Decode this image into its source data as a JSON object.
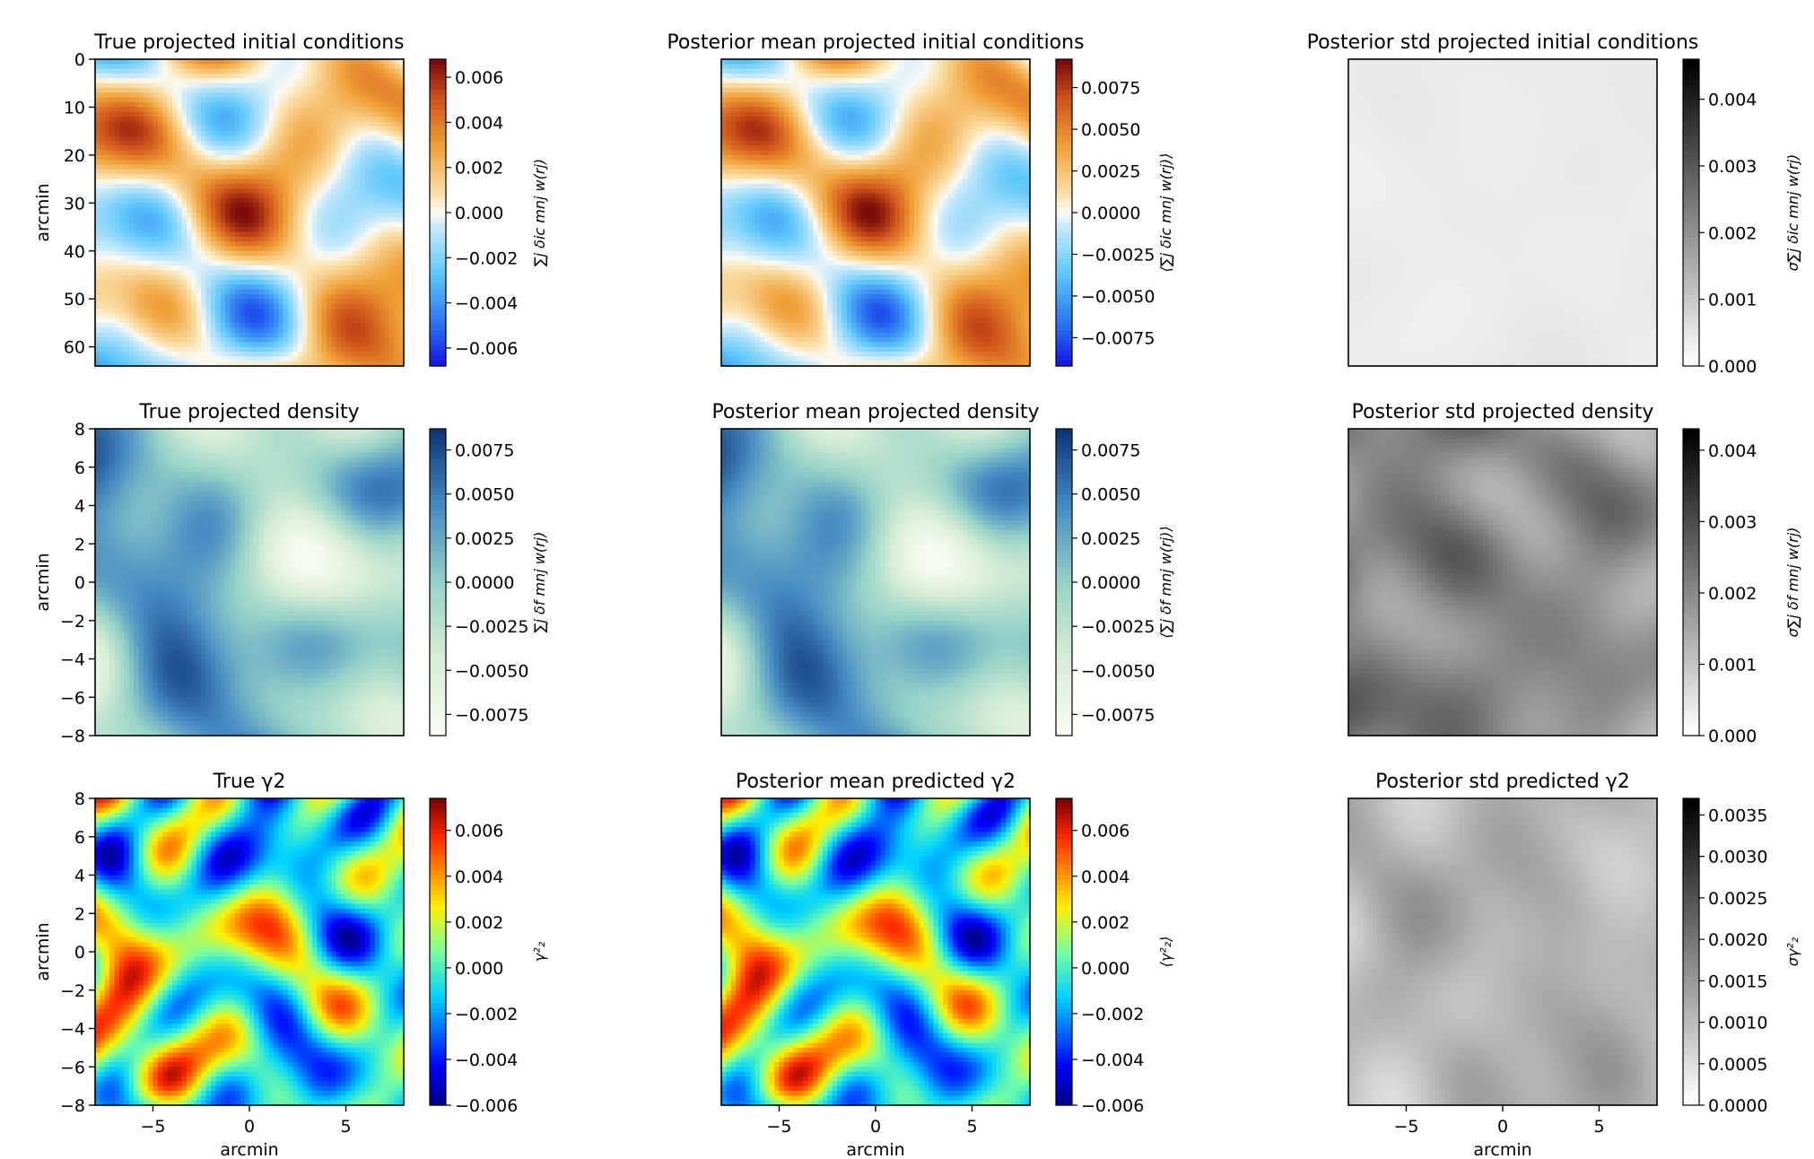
{
  "figure": {
    "title": "",
    "rows": 3,
    "cols": 3
  },
  "chart_data": [
    {
      "type": "heatmap",
      "panel": "r0c0",
      "title": "True projected initial conditions",
      "ylabel": "arcmin",
      "xlabel": "",
      "ylim": [
        64,
        0
      ],
      "xlim": null,
      "yticks": [
        0,
        10,
        20,
        30,
        40,
        50,
        60
      ],
      "xticks": [],
      "colormap": "orange-blue (RdYlBu-like, diverging)",
      "vmin": -0.0068,
      "vmax": 0.0068,
      "colorbar_ticks": [
        0.006,
        0.004,
        0.002,
        0.0,
        -0.002,
        -0.004,
        -0.006
      ],
      "colorbar_label": "∑j δic mnj w(rj)",
      "grid": "off",
      "seed": 11
    },
    {
      "type": "heatmap",
      "panel": "r0c1",
      "title": "Posterior mean projected initial conditions",
      "ylabel": "",
      "xlabel": "",
      "ylim": null,
      "xlim": null,
      "yticks": [],
      "xticks": [],
      "colormap": "orange-blue (RdYlBu-like, diverging)",
      "vmin": -0.0092,
      "vmax": 0.0092,
      "colorbar_ticks": [
        0.0075,
        0.005,
        0.0025,
        0.0,
        -0.0025,
        -0.005,
        -0.0075
      ],
      "colorbar_label": "⟨∑j δic mnj w(rj)⟩",
      "grid": "off",
      "seed": 11
    },
    {
      "type": "heatmap",
      "panel": "r0c2",
      "title": "Posterior std projected initial conditions",
      "ylabel": "",
      "xlabel": "",
      "ylim": null,
      "xlim": null,
      "yticks": [],
      "xticks": [],
      "colormap": "greys (white to black)",
      "vmin": 0.0,
      "vmax": 0.0046,
      "colorbar_ticks": [
        0.004,
        0.003,
        0.002,
        0.001,
        0.0
      ],
      "colorbar_label": "σ∑j δic mnj w(rj)",
      "grid": "off",
      "seed": 23
    },
    {
      "type": "heatmap",
      "panel": "r1c0",
      "title": "True projected density",
      "ylabel": "arcmin",
      "xlabel": "",
      "ylim": [
        -8,
        8
      ],
      "xlim": null,
      "yticks": [
        8,
        6,
        4,
        2,
        0,
        -2,
        -4,
        -6,
        -8
      ],
      "xticks": [],
      "colormap": "green-blue (GnBu-like)",
      "vmin": -0.0087,
      "vmax": 0.0087,
      "colorbar_ticks": [
        0.0075,
        0.005,
        0.0025,
        0.0,
        -0.0025,
        -0.005,
        -0.0075
      ],
      "colorbar_label": "∑j δf mnj w(rj)",
      "grid": "off",
      "seed": 37
    },
    {
      "type": "heatmap",
      "panel": "r1c1",
      "title": "Posterior mean projected density",
      "ylabel": "",
      "xlabel": "",
      "ylim": null,
      "xlim": null,
      "yticks": [],
      "xticks": [],
      "colormap": "green-blue (GnBu-like)",
      "vmin": -0.0087,
      "vmax": 0.0087,
      "colorbar_ticks": [
        0.0075,
        0.005,
        0.0025,
        0.0,
        -0.0025,
        -0.005,
        -0.0075
      ],
      "colorbar_label": "⟨∑j δf mnj w(rj)⟩",
      "grid": "off",
      "seed": 37
    },
    {
      "type": "heatmap",
      "panel": "r1c2",
      "title": "Posterior std projected density",
      "ylabel": "",
      "xlabel": "",
      "ylim": null,
      "xlim": null,
      "yticks": [],
      "xticks": [],
      "colormap": "greys (white to black)",
      "vmin": 0.0,
      "vmax": 0.0043,
      "colorbar_ticks": [
        0.004,
        0.003,
        0.002,
        0.001,
        0.0
      ],
      "colorbar_label": "σ∑j δf mnj w(rj)",
      "grid": "off",
      "seed": 41
    },
    {
      "type": "heatmap",
      "panel": "r2c0",
      "title": "True γ2",
      "ylabel": "arcmin",
      "xlabel": "arcmin",
      "ylim": [
        -8,
        8
      ],
      "xlim": [
        -8,
        8
      ],
      "yticks": [
        8,
        6,
        4,
        2,
        0,
        -2,
        -4,
        -6,
        -8
      ],
      "xticks": [
        -5,
        0,
        5
      ],
      "colormap": "jet",
      "vmin": -0.006,
      "vmax": 0.0074,
      "colorbar_ticks": [
        0.006,
        0.004,
        0.002,
        0.0,
        -0.002,
        -0.004,
        -0.006
      ],
      "colorbar_label": "γ²₂",
      "grid": "off",
      "seed": 53
    },
    {
      "type": "heatmap",
      "panel": "r2c1",
      "title": "Posterior mean predicted γ2",
      "ylabel": "",
      "xlabel": "arcmin",
      "ylim": null,
      "xlim": [
        -8,
        8
      ],
      "yticks": [],
      "xticks": [
        -5,
        0,
        5
      ],
      "colormap": "jet",
      "vmin": -0.006,
      "vmax": 0.0074,
      "colorbar_ticks": [
        0.006,
        0.004,
        0.002,
        0.0,
        -0.002,
        -0.004,
        -0.006
      ],
      "colorbar_label": "⟨γ²₂⟩",
      "grid": "off",
      "seed": 53
    },
    {
      "type": "heatmap",
      "panel": "r2c2",
      "title": "Posterior std predicted γ2",
      "ylabel": "",
      "xlabel": "arcmin",
      "ylim": null,
      "xlim": [
        -8,
        8
      ],
      "yticks": [],
      "xticks": [
        -5,
        0,
        5
      ],
      "colormap": "greys (white to black)",
      "vmin": 0.0,
      "vmax": 0.0037,
      "colorbar_ticks": [
        0.0035,
        0.003,
        0.0025,
        0.002,
        0.0015,
        0.001,
        0.0005,
        0.0
      ],
      "colorbar_label": "σγ²₂",
      "grid": "off",
      "seed": 67
    }
  ]
}
